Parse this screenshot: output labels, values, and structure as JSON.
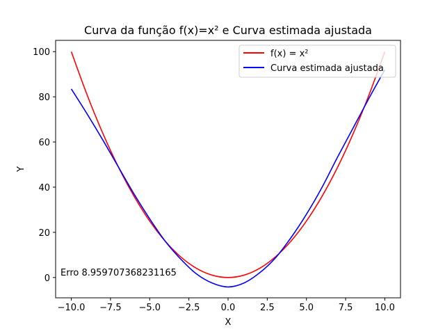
{
  "chart_data": {
    "type": "line",
    "title": "Curva da função f(x)=x² e Curva estimada ajustada",
    "xlabel": "X",
    "ylabel": "Y",
    "xlim": [
      -11.0,
      11.0
    ],
    "ylim": [
      -9.0,
      105.0
    ],
    "xticks": [
      -10.0,
      -7.5,
      -5.0,
      -2.5,
      0.0,
      2.5,
      5.0,
      7.5,
      10.0
    ],
    "xtick_labels": [
      "−10.0",
      "−7.5",
      "−5.0",
      "−2.5",
      "0.0",
      "2.5",
      "5.0",
      "7.5",
      "10.0"
    ],
    "yticks": [
      0,
      20,
      40,
      60,
      80,
      100
    ],
    "ytick_labels": [
      "0",
      "20",
      "40",
      "60",
      "80",
      "100"
    ],
    "grid": false,
    "legend_position": "top-right",
    "annotation": "Erro 8.959707368231165",
    "series": [
      {
        "name": "f(x) = x²",
        "color": "#ff0000",
        "x": [
          -10,
          -9,
          -8,
          -7,
          -6,
          -5,
          -4,
          -3,
          -2,
          -1,
          0,
          1,
          2,
          3,
          4,
          5,
          6,
          7,
          8,
          9,
          10
        ],
        "y": [
          100,
          81,
          64,
          49,
          36,
          25,
          16,
          9,
          4,
          1,
          0,
          1,
          4,
          9,
          16,
          25,
          36,
          49,
          64,
          81,
          100
        ]
      },
      {
        "name": "Curva estimada ajustada",
        "color": "#0000ff",
        "x": [
          -10,
          -9,
          -8,
          -7,
          -6,
          -5,
          -4,
          -3,
          -2,
          -1,
          0,
          1,
          2,
          3,
          4,
          5,
          6,
          7,
          8,
          9,
          10
        ],
        "y": [
          83.5,
          72.5,
          61.0,
          49.0,
          37.0,
          26.0,
          16.0,
          8.0,
          1.5,
          -2.5,
          -4.2,
          -2.5,
          2.0,
          8.5,
          17.5,
          28.0,
          40.0,
          53.5,
          66.5,
          79.5,
          92.0
        ]
      }
    ]
  }
}
